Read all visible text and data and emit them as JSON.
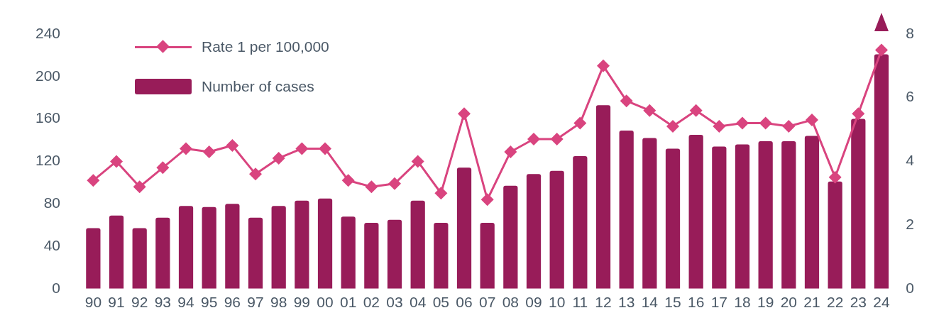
{
  "chart_data": {
    "type": "bar",
    "categories": [
      "90",
      "91",
      "92",
      "93",
      "94",
      "95",
      "96",
      "97",
      "98",
      "99",
      "00",
      "01",
      "02",
      "03",
      "04",
      "05",
      "06",
      "07",
      "08",
      "09",
      "10",
      "11",
      "12",
      "13",
      "14",
      "15",
      "16",
      "17",
      "18",
      "19",
      "20",
      "21",
      "22",
      "23",
      "24"
    ],
    "series": [
      {
        "name": "Number of cases",
        "color": "#981c59",
        "values": [
          57,
          69,
          57,
          67,
          78,
          77,
          80,
          67,
          78,
          83,
          85,
          68,
          62,
          65,
          83,
          62,
          114,
          62,
          97,
          108,
          111,
          125,
          173,
          149,
          142,
          132,
          145,
          134,
          136,
          139,
          139,
          144,
          101,
          160,
          221
        ]
      },
      {
        "name": "Rate 1 per 100,000",
        "type": "line",
        "axis": "y2",
        "color": "#d9447f",
        "values": [
          3.4,
          4.0,
          3.2,
          3.8,
          4.4,
          4.3,
          4.5,
          3.6,
          4.1,
          4.4,
          4.4,
          3.4,
          3.2,
          3.3,
          4.0,
          3.0,
          5.5,
          2.8,
          4.3,
          4.7,
          4.7,
          5.2,
          7.0,
          5.9,
          5.6,
          5.1,
          5.6,
          5.1,
          5.2,
          5.2,
          5.1,
          5.3,
          3.5,
          5.5,
          7.5
        ]
      }
    ],
    "ylim": [
      0,
      240
    ],
    "yticks": [
      0,
      40,
      80,
      120,
      160,
      200,
      240
    ],
    "y2lim": [
      0,
      8
    ],
    "y2ticks": [
      0,
      2,
      4,
      6,
      8
    ],
    "grid": false,
    "legend": "top left",
    "marker": "diamond",
    "line_style": "solid"
  }
}
